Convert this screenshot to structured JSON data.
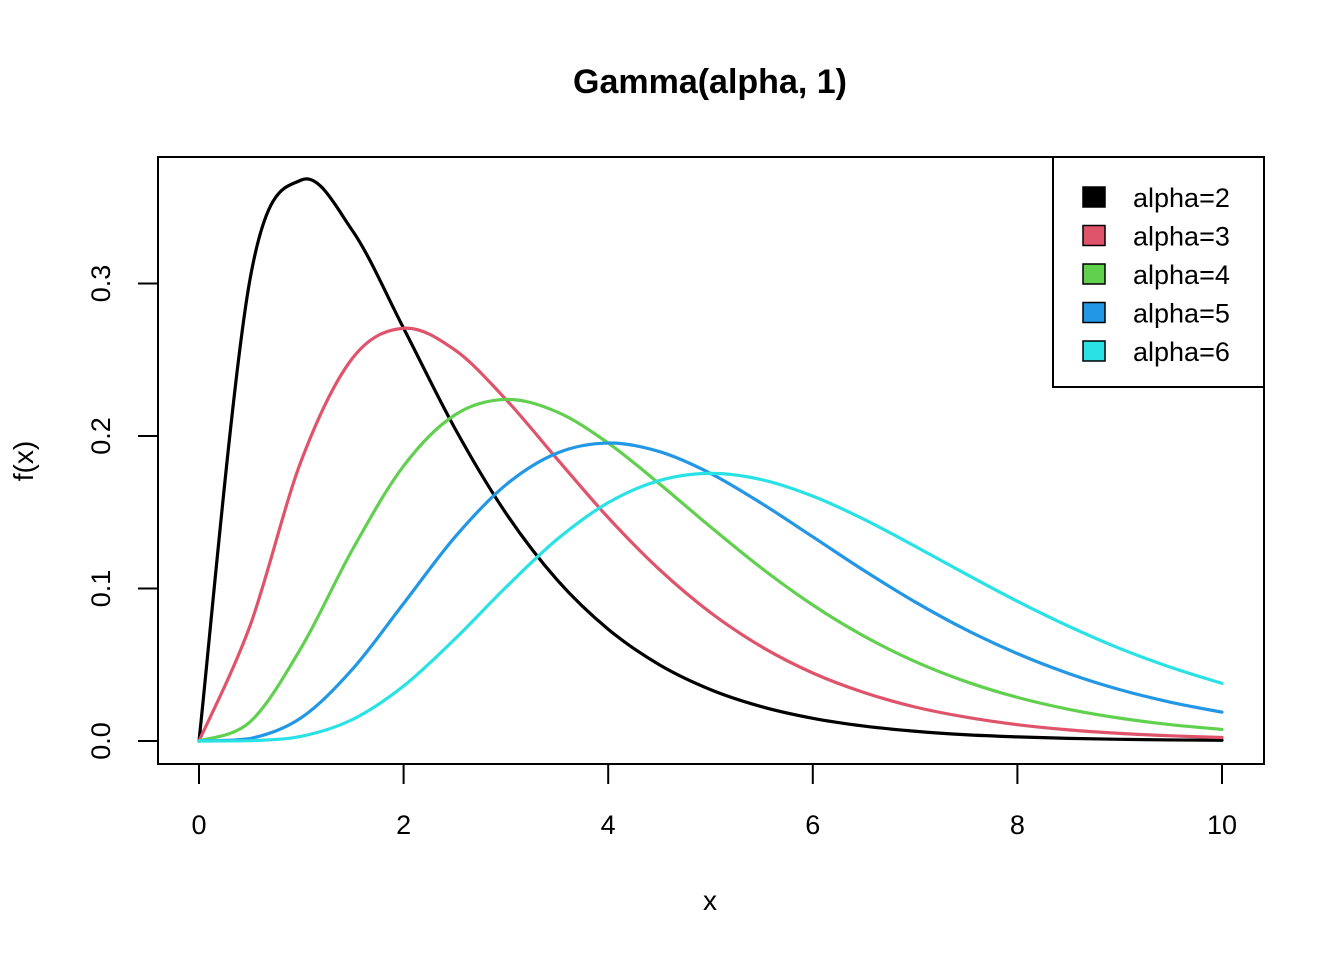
{
  "chart_data": {
    "type": "line",
    "title": "Gamma(alpha, 1)",
    "xlabel": "x",
    "ylabel": "f(x)",
    "xlim": [
      0,
      10
    ],
    "ylim": [
      0,
      0.3679
    ],
    "x_ticks": [
      0,
      2,
      4,
      6,
      8,
      10
    ],
    "x_tick_labels": [
      "0",
      "2",
      "4",
      "6",
      "8",
      "10"
    ],
    "y_ticks": [
      0,
      0.1,
      0.2,
      0.3
    ],
    "y_tick_labels": [
      "0.0",
      "0.1",
      "0.2",
      "0.3"
    ],
    "grid": false,
    "legend_position": "top-right",
    "x": [
      0,
      0.5,
      1,
      1.5,
      2,
      2.5,
      3,
      3.5,
      4,
      4.5,
      5,
      5.5,
      6,
      6.5,
      7,
      7.5,
      8,
      8.5,
      9,
      9.5,
      10
    ],
    "series": [
      {
        "name": "alpha=2",
        "color": "#000000",
        "values": [
          0,
          0.3033,
          0.3679,
          0.3347,
          0.2707,
          0.2052,
          0.1494,
          0.1057,
          0.0733,
          0.05,
          0.0337,
          0.0225,
          0.0149,
          0.0098,
          0.0064,
          0.0041,
          0.0027,
          0.0017,
          0.0011,
          0.0007,
          0.0005
        ]
      },
      {
        "name": "alpha=3",
        "color": "#DF536B",
        "values": [
          0,
          0.0758,
          0.1839,
          0.251,
          0.2707,
          0.2565,
          0.224,
          0.185,
          0.1465,
          0.1125,
          0.0842,
          0.0618,
          0.0446,
          0.0318,
          0.0223,
          0.0156,
          0.0107,
          0.0073,
          0.005,
          0.0034,
          0.0023
        ]
      },
      {
        "name": "alpha=4",
        "color": "#61D04F",
        "values": [
          0,
          0.0126,
          0.0613,
          0.1255,
          0.1804,
          0.2138,
          0.224,
          0.2158,
          0.1954,
          0.1687,
          0.1404,
          0.1133,
          0.0892,
          0.0688,
          0.0521,
          0.0389,
          0.0286,
          0.0208,
          0.015,
          0.0107,
          0.0076
        ]
      },
      {
        "name": "alpha=5",
        "color": "#2297E6",
        "values": [
          0,
          0.0016,
          0.0153,
          0.0471,
          0.0902,
          0.1336,
          0.168,
          0.1888,
          0.1954,
          0.1898,
          0.1755,
          0.1558,
          0.1339,
          0.1118,
          0.0912,
          0.0729,
          0.0573,
          0.0443,
          0.0337,
          0.0254,
          0.0189
        ]
      },
      {
        "name": "alpha=6",
        "color": "#28E2E5",
        "values": [
          0,
          0.0002,
          0.0031,
          0.0141,
          0.0361,
          0.0668,
          0.1008,
          0.1322,
          0.1563,
          0.1708,
          0.1755,
          0.1714,
          0.1606,
          0.1454,
          0.1277,
          0.1094,
          0.0916,
          0.0753,
          0.0607,
          0.0483,
          0.0378
        ]
      }
    ]
  }
}
